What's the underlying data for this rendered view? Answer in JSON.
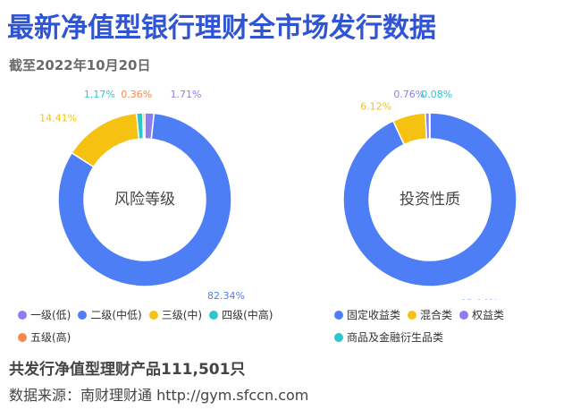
{
  "header": {
    "title": "最新净值型银行理财全市场发行数据",
    "subtitle": "截至2022年10月20日"
  },
  "footer": {
    "total": "共发行净值型理财产品111,501只",
    "source": "数据来源：南财理财通 http://gym.sfccn.com"
  },
  "chart_data": [
    {
      "type": "pie",
      "donut": true,
      "center_label": "风险等级",
      "legend_position": "bottom",
      "slices": [
        {
          "name": "一级(低)",
          "value": 1.71,
          "label": "1.71%",
          "color": "#8c7ef0"
        },
        {
          "name": "二级(中低)",
          "value": 82.34,
          "label": "82.34%",
          "color": "#4d7ef5"
        },
        {
          "name": "三级(中)",
          "value": 14.41,
          "label": "14.41%",
          "color": "#f5c211"
        },
        {
          "name": "四级(中高)",
          "value": 1.17,
          "label": "1.17%",
          "color": "#2ec7c9"
        },
        {
          "name": "五级(高)",
          "value": 0.36,
          "label": "0.36%",
          "color": "#f58a4b"
        }
      ]
    },
    {
      "type": "pie",
      "donut": true,
      "center_label": "投资性质",
      "legend_position": "bottom",
      "slices": [
        {
          "name": "固定收益类",
          "value": 93.04,
          "label": "93.04%",
          "color": "#4d7ef5"
        },
        {
          "name": "混合类",
          "value": 6.12,
          "label": "6.12%",
          "color": "#f5c211"
        },
        {
          "name": "权益类",
          "value": 0.76,
          "label": "0.76%",
          "color": "#8c7ef0"
        },
        {
          "name": "商品及金融衍生品类",
          "value": 0.08,
          "label": "0.08%",
          "color": "#2ec7c9"
        }
      ]
    }
  ]
}
